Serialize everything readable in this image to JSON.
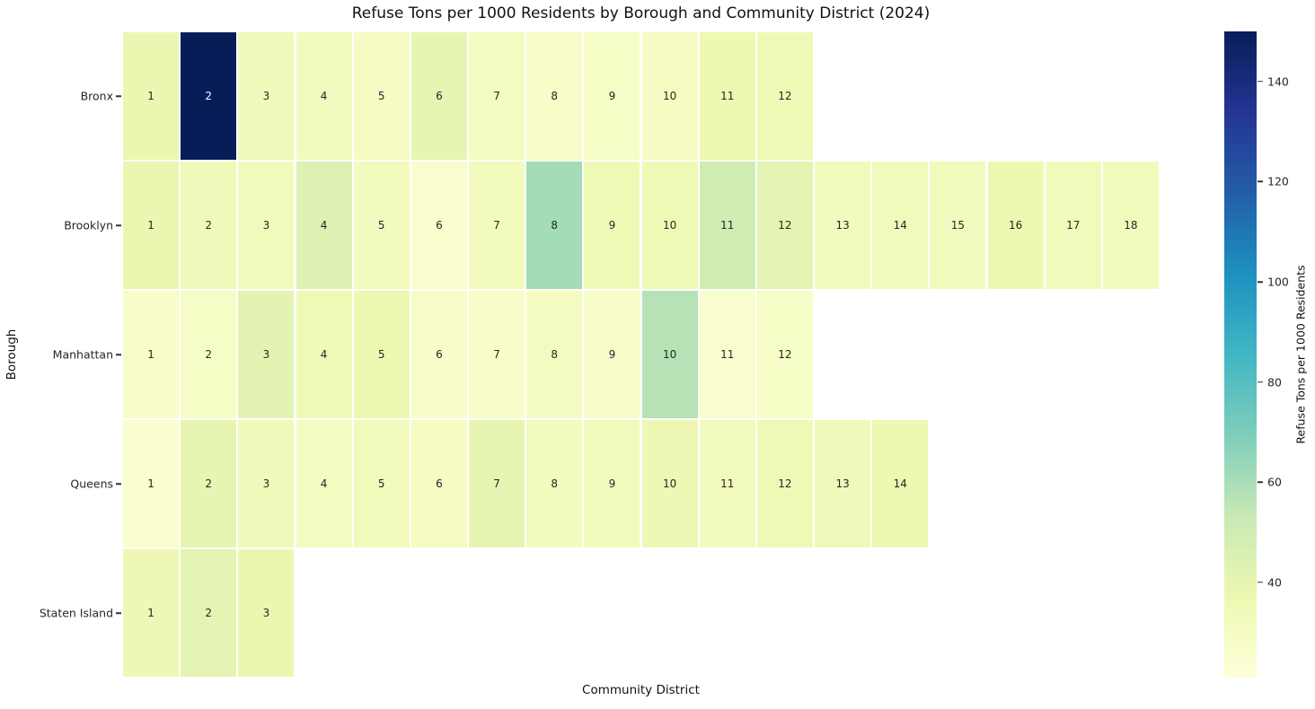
{
  "title": "Refuse Tons per 1000 Residents by Borough and Community District (2024)",
  "chart_data": {
    "type": "heatmap",
    "title": "Refuse Tons per 1000 Residents by Borough and Community District (2024)",
    "xlabel": "Community District",
    "ylabel": "Borough",
    "annotation_content": "district_number",
    "grid": false,
    "columns_max": 18,
    "colormap": {
      "name": "YlGnBu",
      "anchors": [
        "#ffffd9",
        "#edf8b1",
        "#c7e9b4",
        "#7fcdbb",
        "#41b6c4",
        "#1d91c0",
        "#225ea8",
        "#253494",
        "#081d58"
      ]
    },
    "colorbar": {
      "label": "Refuse Tons per 1000 Residents",
      "ticks": [
        40,
        60,
        80,
        100,
        120,
        140
      ],
      "vmin": 21,
      "vmax": 150,
      "position": "right"
    },
    "rows": [
      {
        "borough": "Bronx",
        "districts": [
          1,
          2,
          3,
          4,
          5,
          6,
          7,
          8,
          9,
          10,
          11,
          12
        ],
        "values": [
          38,
          150,
          34,
          32,
          30,
          40,
          31,
          28,
          29,
          30,
          37,
          35
        ]
      },
      {
        "borough": "Brooklyn",
        "districts": [
          1,
          2,
          3,
          4,
          5,
          6,
          7,
          8,
          9,
          10,
          11,
          12,
          13,
          14,
          15,
          16,
          17,
          18
        ],
        "values": [
          38,
          34,
          33,
          44,
          32,
          26,
          32,
          61,
          35,
          35,
          50,
          41,
          32,
          33,
          32,
          37,
          33,
          33
        ]
      },
      {
        "borough": "Manhattan",
        "districts": [
          1,
          2,
          3,
          4,
          5,
          6,
          7,
          8,
          9,
          10,
          11,
          12
        ],
        "values": [
          28,
          29,
          42,
          35,
          37,
          27,
          28,
          31,
          28,
          57,
          26,
          29
        ]
      },
      {
        "borough": "Queens",
        "districts": [
          1,
          2,
          3,
          4,
          5,
          6,
          7,
          8,
          9,
          10,
          11,
          12,
          13,
          14
        ],
        "values": [
          25,
          40,
          34,
          31,
          33,
          30,
          40,
          32,
          33,
          36,
          32,
          35,
          34,
          37
        ]
      },
      {
        "borough": "Staten Island",
        "districts": [
          1,
          2,
          3
        ],
        "values": [
          36,
          41,
          38
        ]
      }
    ]
  }
}
